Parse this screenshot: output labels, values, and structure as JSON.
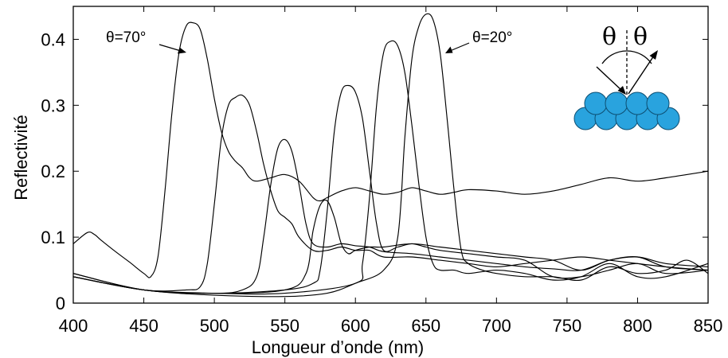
{
  "chart_data": {
    "type": "line",
    "title": "",
    "xlabel": "Longueur d’onde (nm)",
    "ylabel": "Reflectivité",
    "xlim": [
      400,
      850
    ],
    "ylim": [
      0,
      0.45
    ],
    "xticks": [
      400,
      450,
      500,
      550,
      600,
      650,
      700,
      750,
      800,
      850
    ],
    "yticks": [
      0,
      0.1,
      0.2,
      0.3,
      0.4
    ],
    "ytick_labels": [
      "0",
      "0.1",
      "0.2",
      "0.3",
      "0.4"
    ],
    "grid": false,
    "legend": "none",
    "annotations": [
      {
        "text": "θ=70°",
        "points_to": [
          470,
          0.38
        ]
      },
      {
        "text": "θ=20°",
        "points_to": [
          635,
          0.38
        ]
      }
    ],
    "inset": {
      "theta_left": "θ",
      "theta_right": "θ",
      "sphere_color": "#29A3DE",
      "description_icon": "sphere-stack-icon"
    },
    "series": [
      {
        "x": [
          400,
          410,
          415,
          420,
          430,
          440,
          450,
          455,
          460,
          465,
          470,
          475,
          480,
          485,
          490,
          495,
          500,
          505,
          510,
          515,
          520,
          525,
          530,
          540,
          550,
          560,
          570,
          575,
          580,
          590,
          600,
          610,
          620,
          630,
          640,
          650,
          660,
          670,
          680,
          700,
          720,
          740,
          760,
          780,
          800,
          820,
          850
        ],
        "y": [
          0.09,
          0.107,
          0.104,
          0.095,
          0.078,
          0.062,
          0.045,
          0.04,
          0.07,
          0.17,
          0.29,
          0.38,
          0.42,
          0.425,
          0.415,
          0.37,
          0.31,
          0.26,
          0.23,
          0.215,
          0.205,
          0.19,
          0.185,
          0.19,
          0.195,
          0.185,
          0.16,
          0.155,
          0.16,
          0.17,
          0.175,
          0.17,
          0.165,
          0.168,
          0.175,
          0.17,
          0.165,
          0.168,
          0.172,
          0.17,
          0.165,
          0.17,
          0.18,
          0.19,
          0.185,
          0.19,
          0.2
        ]
      },
      {
        "x": [
          400,
          450,
          480,
          490,
          495,
          500,
          505,
          510,
          515,
          520,
          525,
          530,
          535,
          540,
          545,
          550,
          555,
          560,
          570,
          580,
          590,
          600,
          610,
          620,
          640,
          660,
          680,
          700,
          720,
          740,
          760,
          780,
          800,
          820,
          850
        ],
        "y": [
          0.04,
          0.02,
          0.02,
          0.025,
          0.06,
          0.15,
          0.25,
          0.3,
          0.312,
          0.315,
          0.3,
          0.26,
          0.21,
          0.17,
          0.14,
          0.13,
          0.12,
          0.1,
          0.08,
          0.08,
          0.085,
          0.08,
          0.08,
          0.07,
          0.07,
          0.065,
          0.06,
          0.055,
          0.06,
          0.065,
          0.07,
          0.065,
          0.06,
          0.055,
          0.05
        ]
      },
      {
        "x": [
          400,
          450,
          500,
          520,
          530,
          535,
          540,
          545,
          550,
          555,
          560,
          565,
          570,
          580,
          590,
          600,
          610,
          620,
          640,
          660,
          680,
          700,
          720,
          740,
          760,
          780,
          800,
          820,
          850
        ],
        "y": [
          0.045,
          0.02,
          0.015,
          0.02,
          0.04,
          0.1,
          0.18,
          0.235,
          0.248,
          0.23,
          0.18,
          0.12,
          0.09,
          0.085,
          0.09,
          0.087,
          0.085,
          0.078,
          0.075,
          0.07,
          0.065,
          0.06,
          0.055,
          0.052,
          0.05,
          0.065,
          0.07,
          0.06,
          0.055
        ]
      },
      {
        "x": [
          400,
          450,
          500,
          550,
          565,
          570,
          575,
          580,
          585,
          590,
          595,
          600,
          610,
          620,
          640,
          660,
          680,
          700,
          720,
          740,
          760,
          780,
          800,
          820,
          850
        ],
        "y": [
          0.04,
          0.02,
          0.015,
          0.02,
          0.045,
          0.11,
          0.148,
          0.155,
          0.13,
          0.09,
          0.075,
          0.08,
          0.085,
          0.085,
          0.09,
          0.085,
          0.08,
          0.075,
          0.07,
          0.065,
          0.05,
          0.065,
          0.07,
          0.055,
          0.05
        ]
      },
      {
        "x": [
          400,
          450,
          500,
          550,
          570,
          575,
          580,
          585,
          590,
          595,
          600,
          605,
          610,
          615,
          620,
          630,
          640,
          650,
          660,
          680,
          700,
          720,
          740,
          760,
          780,
          800,
          820,
          850
        ],
        "y": [
          0.045,
          0.02,
          0.015,
          0.02,
          0.03,
          0.05,
          0.14,
          0.26,
          0.32,
          0.33,
          0.32,
          0.28,
          0.2,
          0.12,
          0.08,
          0.085,
          0.09,
          0.085,
          0.08,
          0.075,
          0.07,
          0.065,
          0.04,
          0.04,
          0.05,
          0.06,
          0.045,
          0.05
        ]
      },
      {
        "x": [
          400,
          450,
          500,
          550,
          600,
          605,
          610,
          615,
          620,
          625,
          630,
          635,
          640,
          645,
          650,
          655,
          660,
          670,
          680,
          700,
          720,
          740,
          760,
          780,
          800,
          820,
          850
        ],
        "y": [
          0.04,
          0.02,
          0.015,
          0.015,
          0.03,
          0.06,
          0.16,
          0.3,
          0.38,
          0.397,
          0.39,
          0.35,
          0.27,
          0.18,
          0.1,
          0.06,
          0.05,
          0.05,
          0.045,
          0.05,
          0.045,
          0.035,
          0.04,
          0.06,
          0.04,
          0.04,
          0.06
        ]
      },
      {
        "x": [
          400,
          450,
          500,
          550,
          580,
          600,
          620,
          630,
          635,
          640,
          645,
          650,
          655,
          660,
          665,
          670,
          675,
          680,
          690,
          700,
          720,
          740,
          760,
          780,
          800,
          820,
          835,
          850
        ],
        "y": [
          0.04,
          0.02,
          0.012,
          0.01,
          0.015,
          0.03,
          0.05,
          0.1,
          0.25,
          0.37,
          0.42,
          0.438,
          0.43,
          0.38,
          0.28,
          0.17,
          0.08,
          0.06,
          0.05,
          0.045,
          0.04,
          0.04,
          0.035,
          0.055,
          0.045,
          0.05,
          0.065,
          0.045
        ]
      }
    ]
  }
}
